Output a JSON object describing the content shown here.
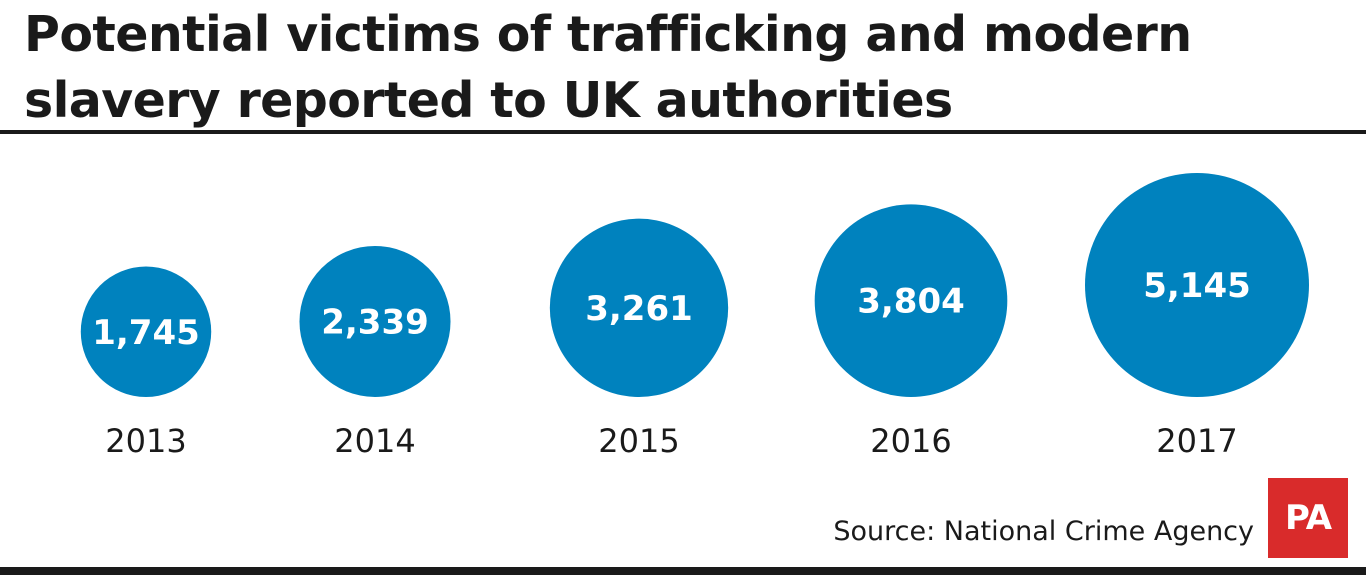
{
  "title": "Potential victims of trafficking and modern slavery reported to UK authorities",
  "source": "Source: National Crime Agency",
  "logo_text": "PA",
  "colors": {
    "bubble": "#0082be",
    "logo": "#d92b2b",
    "text": "#1a1a1a"
  },
  "chart_data": {
    "type": "bubble",
    "title": "Potential victims of trafficking and modern slavery reported to UK authorities",
    "categories": [
      "2013",
      "2014",
      "2015",
      "2016",
      "2017"
    ],
    "values": [
      1745,
      2339,
      3261,
      3804,
      5145
    ],
    "value_labels": [
      "1,745",
      "2,339",
      "3,261",
      "3,804",
      "5,145"
    ],
    "xlabel": "",
    "ylabel": "",
    "grid": false,
    "legend": "none"
  }
}
